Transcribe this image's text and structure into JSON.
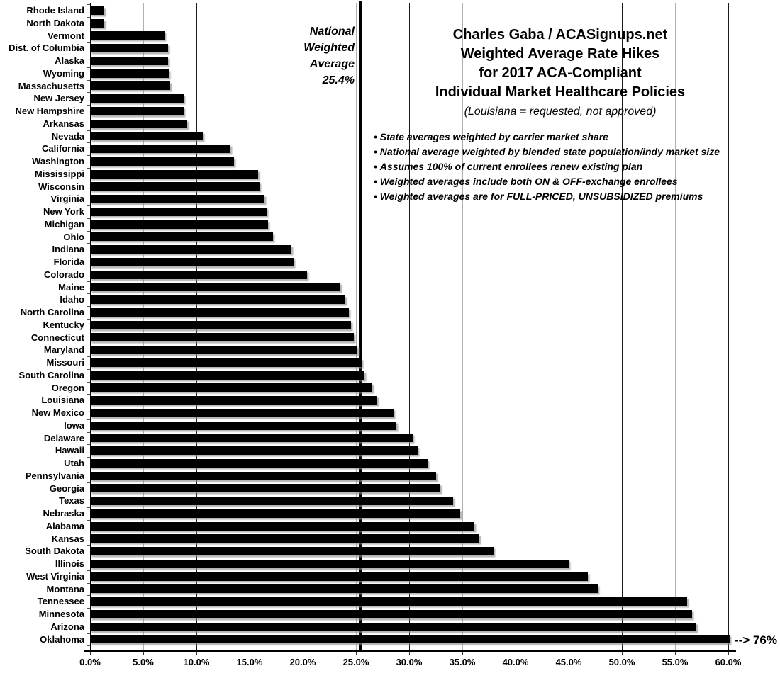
{
  "chart_data": {
    "type": "bar",
    "orientation": "horizontal",
    "title_lines": [
      "Charles Gaba / ACASignups.net",
      "Weighted Average Rate Hikes",
      "for 2017 ACA-Compliant",
      "Individual Market Healthcare Policies"
    ],
    "subtitle": "(Louisiana = requested, not approved)",
    "notes": [
      "State averages weighted by carrier market share",
      "National average weighted by blended state population/indy market size",
      "Assumes 100% of current enrollees renew existing plan",
      "Weighted averages include both ON & OFF-exchange enrollees",
      "Weighted averages are for FULL-PRICED, UNSUBSIDIZED premiums"
    ],
    "categories": [
      "Rhode Island",
      "North Dakota",
      "Vermont",
      "Dist. of Columbia",
      "Alaska",
      "Wyoming",
      "Massachusetts",
      "New Jersey",
      "New Hampshire",
      "Arkansas",
      "Nevada",
      "California",
      "Washington",
      "Mississippi",
      "Wisconsin",
      "Virginia",
      "New York",
      "Michigan",
      "Ohio",
      "Indiana",
      "Florida",
      "Colorado",
      "Maine",
      "Idaho",
      "North Carolina",
      "Kentucky",
      "Connecticut",
      "Maryland",
      "Missouri",
      "South Carolina",
      "Oregon",
      "Louisiana",
      "New Mexico",
      "Iowa",
      "Delaware",
      "Hawaii",
      "Utah",
      "Pennsylvania",
      "Georgia",
      "Texas",
      "Nebraska",
      "Alabama",
      "Kansas",
      "South Dakota",
      "Illinois",
      "West Virginia",
      "Montana",
      "Tennessee",
      "Minnesota",
      "Arizona",
      "Oklahoma"
    ],
    "values": [
      1.3,
      1.3,
      7.0,
      7.3,
      7.3,
      7.4,
      7.5,
      8.8,
      8.8,
      9.1,
      10.6,
      13.2,
      13.5,
      15.8,
      15.9,
      16.4,
      16.6,
      16.7,
      17.2,
      18.9,
      19.1,
      20.4,
      23.5,
      24.0,
      24.3,
      24.5,
      24.8,
      25.1,
      25.5,
      25.8,
      26.5,
      27.0,
      28.5,
      28.8,
      30.3,
      30.8,
      31.7,
      32.5,
      32.9,
      34.1,
      34.8,
      36.1,
      36.6,
      37.9,
      45.0,
      46.8,
      47.7,
      56.1,
      56.6,
      57.0,
      76.0
    ],
    "values_unit": "%",
    "xlim": [
      0,
      60
    ],
    "x_tick_labels": [
      "0.0%",
      "5.0%",
      "10.0%",
      "15.0%",
      "20.0%",
      "25.0%",
      "30.0%",
      "35.0%",
      "40.0%",
      "45.0%",
      "50.0%",
      "55.0%",
      "60.0%"
    ],
    "gridline_step_pct": 5,
    "grid_on": true,
    "national_average": {
      "value": 25.4,
      "label_lines": [
        "National",
        "Weighted",
        "Average",
        "25.4%"
      ]
    },
    "annotations": {
      "oklahoma": "--> 76%"
    },
    "colors": {
      "bar": "#000000",
      "major_grid": "#1a1a1a",
      "minor_grid": "#b0b0b0",
      "average_line": "#000000",
      "background": "#ffffff",
      "text": "#000000"
    }
  }
}
